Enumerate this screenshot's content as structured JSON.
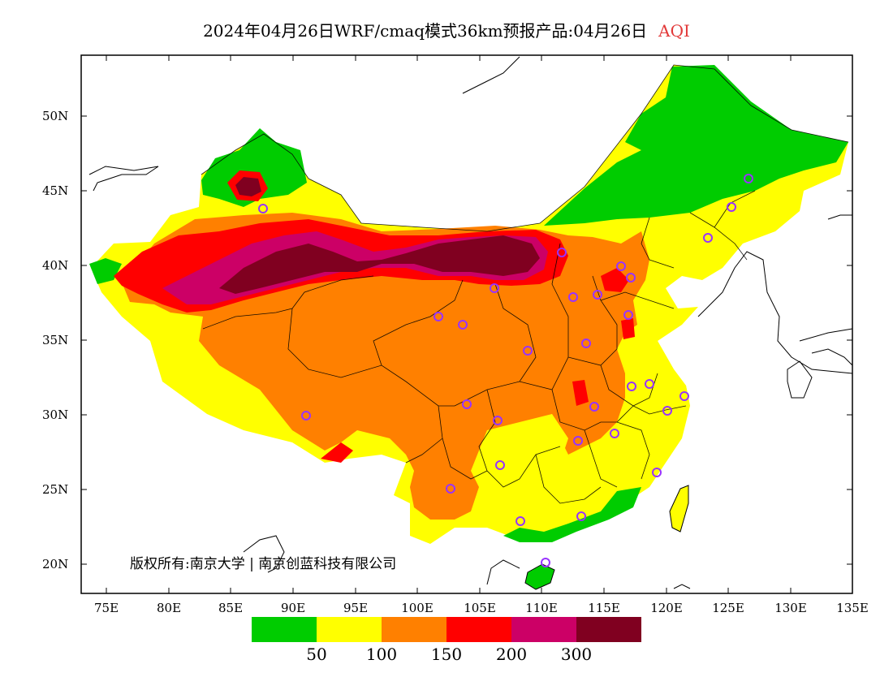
{
  "title": {
    "main": "2024年04月26日WRF/cmaq模式36km预报产品:04月26日",
    "product": "AQI",
    "product_color": "#e23a3a"
  },
  "lat_labels": [
    "50N",
    "45N",
    "40N",
    "35N",
    "30N",
    "25N",
    "20N"
  ],
  "lon_labels": [
    "75E",
    "80E",
    "85E",
    "90E",
    "95E",
    "100E",
    "105E",
    "110E",
    "115E",
    "120E",
    "125E",
    "130E",
    "135E"
  ],
  "legend": {
    "colors": [
      "#00cc00",
      "#ffff00",
      "#ff8000",
      "#ff0000",
      "#cc0066",
      "#800020"
    ],
    "values": [
      "50",
      "100",
      "150",
      "200",
      "300"
    ]
  },
  "copyright": "版权所有:南京大学 | 南京创蓝科技有限公司",
  "colors": {
    "good": "#00cc00",
    "moderate": "#ffff00",
    "unhealthy_sensitive": "#ff8000",
    "unhealthy": "#ff0000",
    "very_unhealthy": "#cc0066",
    "hazardous": "#800020",
    "station_marker": "#9933ff"
  }
}
